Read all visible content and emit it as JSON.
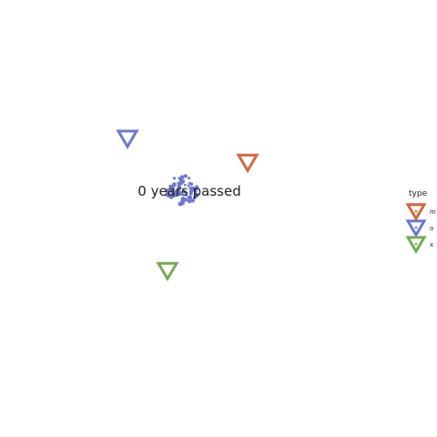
{
  "chart_data": {
    "type": "scatter",
    "title": "",
    "xlabel": "",
    "ylabel": "",
    "grid": false,
    "axes_visible": false,
    "xlim": [
      0,
      100
    ],
    "ylim": [
      0,
      100
    ],
    "series": [
      {
        "name": "m",
        "color": "#d2693f",
        "points": [
          {
            "x": 63,
            "y": 64
          }
        ]
      },
      {
        "name": "o",
        "color": "#6d78cc",
        "points": [
          {
            "x": 30,
            "y": 70
          }
        ]
      },
      {
        "name": "x",
        "color": "#76ab55",
        "points": [
          {
            "x": 41,
            "y": 37
          }
        ]
      }
    ],
    "annotation": {
      "text": "0 years passed",
      "x": 45,
      "y": 57,
      "color": "#6d78cc"
    },
    "legend": {
      "title": "type",
      "placement": "right",
      "items": [
        "m",
        "o",
        "x"
      ]
    }
  }
}
